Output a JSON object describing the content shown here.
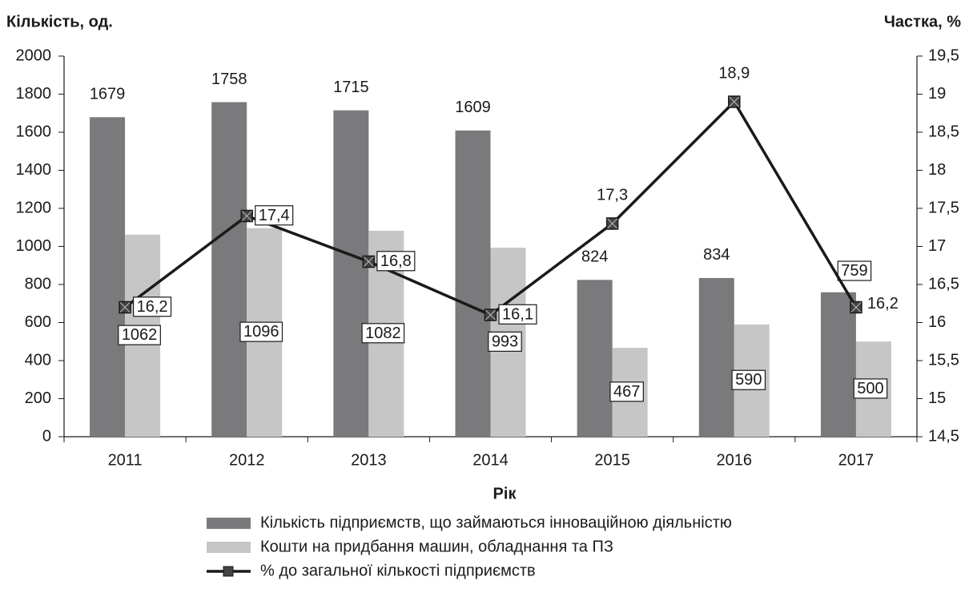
{
  "chart_data": {
    "type": "bar_line",
    "y_label": "Кількість, од.",
    "y2_label": "Частка, %",
    "x_label": "Рік",
    "categories": [
      "2011",
      "2012",
      "2013",
      "2014",
      "2015",
      "2016",
      "2017"
    ],
    "series": [
      {
        "name": "Кількість підприємств, що займаються інноваційною діяльністю",
        "type": "bar",
        "color": "#7a7a7d",
        "values": [
          1679,
          1758,
          1715,
          1609,
          824,
          834,
          759
        ]
      },
      {
        "name": "Кошти на придбання машин, обладнання та ПЗ",
        "type": "bar",
        "color": "#c6c6c6",
        "values": [
          1062,
          1096,
          1082,
          993,
          467,
          590,
          500
        ]
      },
      {
        "name": "% до загальної кількості підприємств",
        "type": "line",
        "axis": "y2",
        "color": "#1a1a1a",
        "values": [
          16.2,
          17.4,
          16.8,
          16.1,
          17.3,
          18.9,
          16.2
        ],
        "value_labels": [
          "16,2",
          "17,4",
          "16,8",
          "16,1",
          "17,3",
          "18,9",
          "16,2"
        ]
      }
    ],
    "ylim": [
      0,
      2000
    ],
    "yticks": [
      0,
      200,
      400,
      600,
      800,
      1000,
      1200,
      1400,
      1600,
      1800,
      2000
    ],
    "y2lim": [
      14.5,
      19.5
    ],
    "y2ticks": [
      {
        "value": 14.5,
        "label": "14,5"
      },
      15,
      {
        "value": 15.5,
        "label": "15,5"
      },
      16,
      {
        "value": 16.5,
        "label": "16,5"
      },
      17,
      {
        "value": 17.5,
        "label": "17,5"
      },
      18,
      {
        "value": 18.5,
        "label": "18,5"
      },
      19,
      {
        "value": 19.5,
        "label": "19,5"
      }
    ],
    "grid": false
  }
}
